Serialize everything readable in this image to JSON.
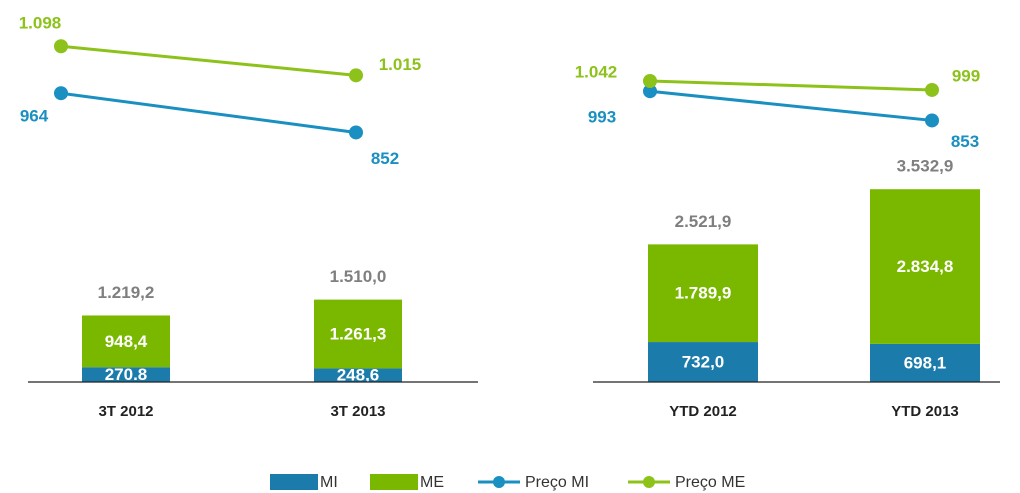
{
  "chart_data": [
    {
      "type": "bar",
      "categories": [
        "3T 2012",
        "3T 2013"
      ],
      "series": [
        {
          "name": "MI",
          "color": "#1b7bab",
          "values": [
            270.8,
            248.6
          ],
          "value_labels": [
            "270.8",
            "248,6"
          ]
        },
        {
          "name": "ME",
          "color": "#7ab800",
          "values": [
            948.4,
            1261.3
          ],
          "value_labels": [
            "948,4",
            "1.261,3"
          ]
        },
        {
          "name": "Preço MI",
          "type": "line",
          "axis": "y2",
          "color": "#1a8fc1",
          "values": [
            964,
            852
          ],
          "value_labels": [
            "964",
            "852"
          ]
        },
        {
          "name": "Preço ME",
          "type": "line",
          "axis": "y2",
          "color": "#8cc21a",
          "values": [
            1098,
            1015
          ],
          "value_labels": [
            "1.098",
            "1.015"
          ]
        }
      ],
      "totals": [
        1219.2,
        1510.0
      ],
      "total_labels": [
        "1.219,2",
        "1.510,0"
      ],
      "ylim": [
        0,
        7000
      ],
      "y2lim": [
        140,
        1230
      ]
    },
    {
      "type": "bar",
      "categories": [
        "YTD 2012",
        "YTD 2013"
      ],
      "series": [
        {
          "color": "#1b7bab",
          "values": [
            732.0,
            698.1
          ],
          "value_labels": [
            "732,0",
            "698,1"
          ]
        },
        {
          "color": "#7ab800",
          "values": [
            1789.9,
            2834.8
          ],
          "value_labels": [
            "1.789,9",
            "2.834,8"
          ]
        },
        {
          "type": "line",
          "axis": "y2",
          "color": "#1a8fc1",
          "values": [
            993,
            853
          ],
          "value_labels": [
            "993",
            "853"
          ]
        },
        {
          "type": "line",
          "axis": "y2",
          "color": "#8cc21a",
          "values": [
            1042,
            999
          ],
          "value_labels": [
            "1.042",
            "999"
          ]
        }
      ],
      "totals": [
        2521.9,
        3532.9
      ],
      "total_labels": [
        "2.521,9",
        "3.532,9"
      ],
      "ylim": [
        0,
        7000
      ],
      "y2lim": [
        -400,
        1430
      ]
    }
  ]
}
